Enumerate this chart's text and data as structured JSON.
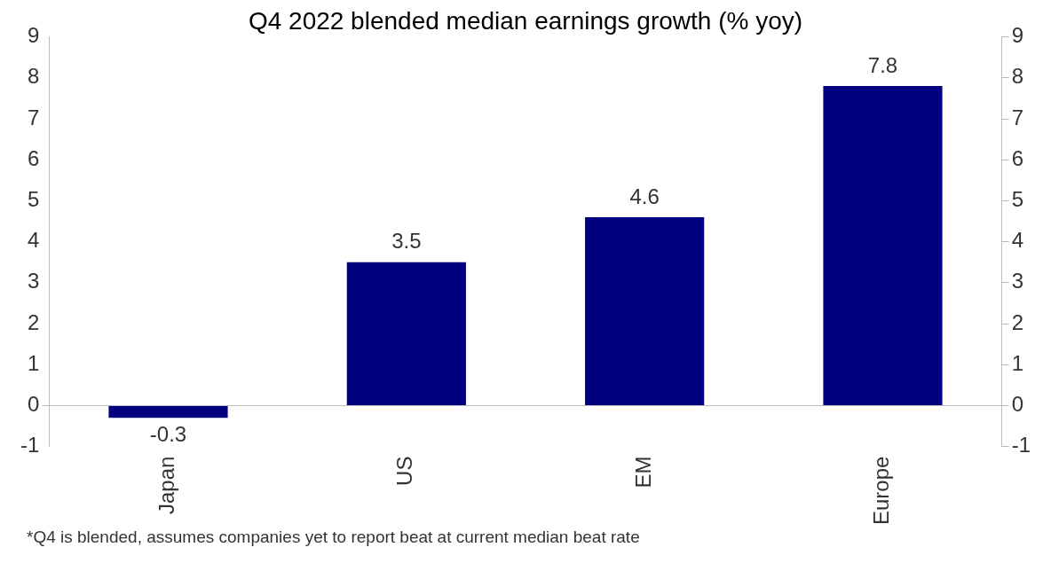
{
  "chart_data": {
    "type": "bar",
    "title": "Q4 2022 blended median earnings growth (% yoy)",
    "categories": [
      "Japan",
      "US",
      "EM",
      "Europe"
    ],
    "values": [
      -0.3,
      3.5,
      4.6,
      7.8
    ],
    "color": "#000080",
    "ylim": [
      -1,
      9
    ],
    "yticks": [
      -1,
      0,
      1,
      2,
      3,
      4,
      5,
      6,
      7,
      8,
      9
    ],
    "y2lim": [
      -1,
      9
    ],
    "y2ticks": [
      -1,
      0,
      1,
      2,
      3,
      4,
      5,
      6,
      7,
      8,
      9
    ],
    "grid": false,
    "legend": false,
    "data_labels": true,
    "annotations": [
      "*Q4 is blended, assumes companies yet to report beat at current median beat rate"
    ]
  }
}
